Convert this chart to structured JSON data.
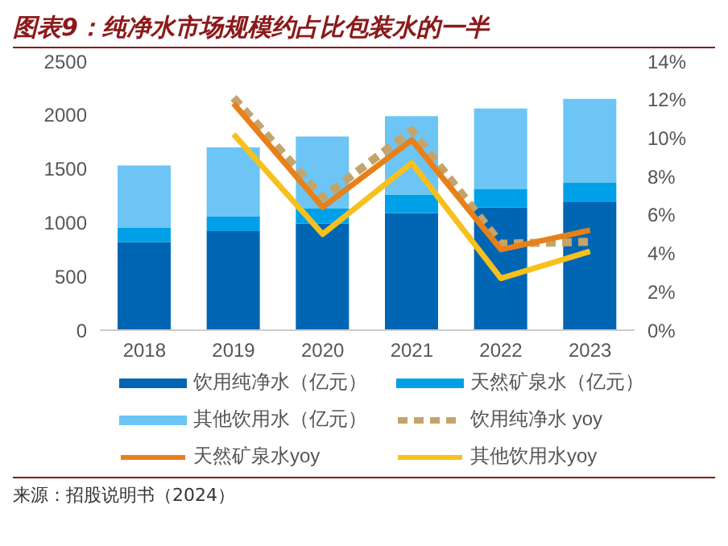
{
  "chart_data": {
    "type": "bar",
    "title": "图表9：纯净水市场规模约占比包装水的一半",
    "categories": [
      "2018",
      "2019",
      "2020",
      "2021",
      "2022",
      "2023"
    ],
    "stacked": true,
    "series": [
      {
        "name": "饮用纯净水（亿元）",
        "color": "#0066b3",
        "values": [
          820,
          920,
          990,
          1090,
          1140,
          1190
        ]
      },
      {
        "name": "天然矿泉水（亿元）",
        "color": "#00a0e9",
        "values": [
          130,
          140,
          140,
          170,
          170,
          180
        ]
      },
      {
        "name": "其他饮用水（亿元）",
        "color": "#6cc5f4",
        "values": [
          580,
          640,
          670,
          730,
          750,
          780
        ]
      },
      {
        "name": "饮用纯净水 yoy",
        "type": "line",
        "axis": "y2",
        "line_style": "dashed",
        "color": "#c4a46a",
        "values": [
          null,
          12.1,
          6.9,
          10.4,
          4.5,
          4.6
        ]
      },
      {
        "name": "天然矿泉水yoy",
        "type": "line",
        "axis": "y2",
        "line_style": "solid",
        "color": "#e8801a",
        "values": [
          null,
          11.8,
          6.4,
          9.9,
          4.2,
          5.2
        ]
      },
      {
        "name": "其他饮用水yoy",
        "type": "line",
        "axis": "y2",
        "line_style": "solid",
        "color": "#f8c01c",
        "values": [
          null,
          10.2,
          5.0,
          8.7,
          2.7,
          4.1
        ]
      }
    ],
    "ylim": [
      0,
      2500
    ],
    "yticks": [
      0,
      500,
      1000,
      1500,
      2000,
      2500
    ],
    "y2lim": [
      0,
      14
    ],
    "y2ticks": [
      {
        "value": 0,
        "label": "0%"
      },
      {
        "value": 2,
        "label": "2%"
      },
      {
        "value": 4,
        "label": "4%"
      },
      {
        "value": 6,
        "label": "6%"
      },
      {
        "value": 8,
        "label": "8%"
      },
      {
        "value": 10,
        "label": "10%"
      },
      {
        "value": 12,
        "label": "12%"
      },
      {
        "value": 14,
        "label": "14%"
      }
    ],
    "legend": "bottom",
    "marker": "none",
    "annotations": [
      "来源：招股说明书（2024）"
    ]
  }
}
